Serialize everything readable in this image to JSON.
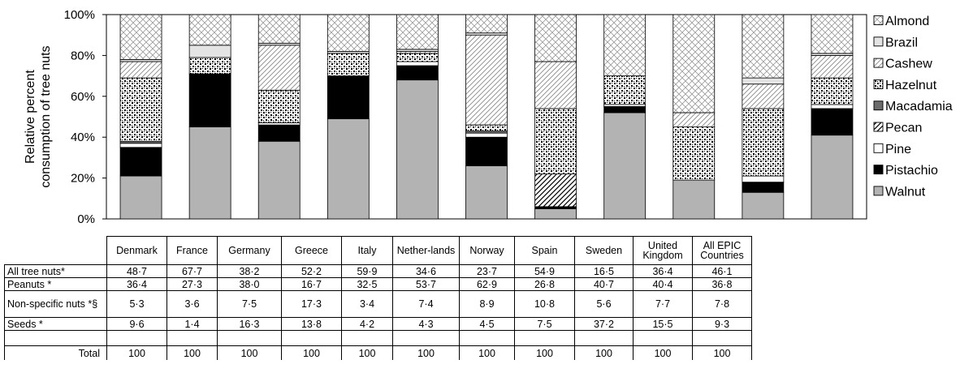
{
  "chart_data": {
    "type": "bar",
    "stacked": true,
    "title": "",
    "xlabel": "",
    "ylabel": "Relative percent consumption of tree nuts",
    "ylabel_lines": [
      "Relative percent",
      "consumption of tree nuts"
    ],
    "ylim": [
      0,
      100
    ],
    "yticks": [
      "0%",
      "20%",
      "40%",
      "60%",
      "80%",
      "100%"
    ],
    "legend_position": "right",
    "categories": [
      "Denmark",
      "France",
      "Germany",
      "Greece",
      "Italy",
      "Nether-lands",
      "Norway",
      "Spain",
      "Sweden",
      "United Kingdom",
      "All EPIC Countries"
    ],
    "series": [
      {
        "name": "Walnut",
        "pattern": "gray",
        "values": [
          21,
          45,
          38,
          49,
          68,
          26,
          5,
          52,
          19,
          13,
          41
        ]
      },
      {
        "name": "Pistachio",
        "pattern": "black",
        "values": [
          14,
          26,
          8,
          21,
          7,
          14,
          1,
          3,
          0,
          5,
          13
        ]
      },
      {
        "name": "Pine",
        "pattern": "white",
        "values": [
          2,
          0,
          1,
          0,
          2,
          2,
          0,
          1,
          0,
          3,
          2
        ]
      },
      {
        "name": "Pecan",
        "pattern": "diag",
        "values": [
          0,
          0,
          0,
          0,
          0,
          0,
          16,
          0,
          0,
          0,
          0
        ]
      },
      {
        "name": "Macadamia",
        "pattern": "darkgray",
        "values": [
          1,
          0,
          0,
          0,
          0,
          1,
          0,
          0,
          0,
          0,
          0
        ]
      },
      {
        "name": "Hazelnut",
        "pattern": "dots",
        "values": [
          31,
          8,
          16,
          11,
          4,
          3,
          32,
          14,
          26,
          33,
          13
        ]
      },
      {
        "name": "Cashew",
        "pattern": "lightdiag",
        "values": [
          8,
          0,
          22,
          0,
          1,
          44,
          23,
          0,
          7,
          12,
          11
        ]
      },
      {
        "name": "Brazil",
        "pattern": "lightgray",
        "values": [
          1,
          6,
          1,
          1,
          1,
          1,
          0,
          0,
          0,
          3,
          1
        ]
      },
      {
        "name": "Almond",
        "pattern": "cross",
        "values": [
          22,
          15,
          14,
          18,
          17,
          9,
          23,
          30,
          48,
          31,
          19
        ]
      }
    ],
    "legend_order": [
      "Almond",
      "Brazil",
      "Cashew",
      "Hazelnut",
      "Macadamia",
      "Pecan",
      "Pine",
      "Pistachio",
      "Walnut"
    ]
  },
  "table": {
    "headers": [
      "Denmark",
      "France",
      "Germany",
      "Greece",
      "Italy",
      "Nether-lands",
      "Norway",
      "Spain",
      "Sweden",
      "United Kingdom",
      "All EPIC Countries"
    ],
    "rows": [
      {
        "label": "All tree nuts*",
        "values": [
          "48·7",
          "67·7",
          "38·2",
          "52·2",
          "59·9",
          "34·6",
          "23·7",
          "54·9",
          "16·5",
          "36·4",
          "46·1"
        ]
      },
      {
        "label": "Peanuts  *",
        "values": [
          "36·4",
          "27·3",
          "38·0",
          "16·7",
          "32·5",
          "53·7",
          "62·9",
          "26·8",
          "40·7",
          "40·4",
          "36·8"
        ]
      },
      {
        "label": "Non-specific nuts *§",
        "values": [
          "5·3",
          "3·6",
          "7·5",
          "17·3",
          "3·4",
          "7·4",
          "8·9",
          "10·8",
          "5·6",
          "7·7",
          "7·8"
        ]
      },
      {
        "label": "Seeds *",
        "values": [
          "9·6",
          "1·4",
          "16·3",
          "13·8",
          "4·2",
          "4·3",
          "4·5",
          "7·5",
          "37·2",
          "15·5",
          "9·3"
        ]
      }
    ],
    "total": {
      "label": "Total",
      "values": [
        "100",
        "100",
        "100",
        "100",
        "100",
        "100",
        "100",
        "100",
        "100",
        "100",
        "100"
      ]
    }
  }
}
